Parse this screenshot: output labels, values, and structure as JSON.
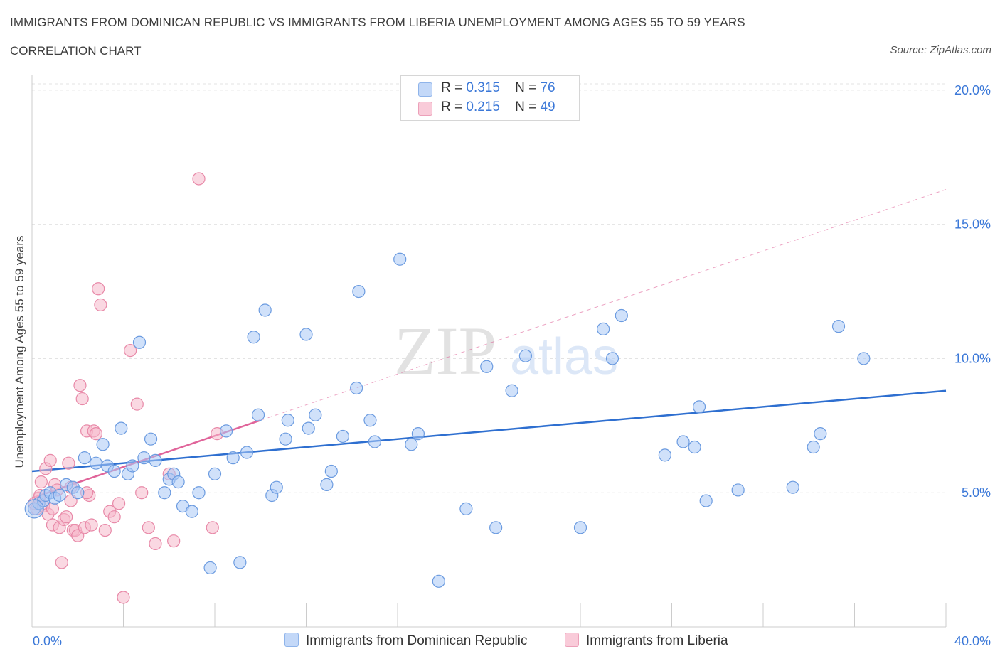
{
  "header": {
    "title": "IMMIGRANTS FROM DOMINICAN REPUBLIC VS IMMIGRANTS FROM LIBERIA UNEMPLOYMENT AMONG AGES 55 TO 59 YEARS",
    "subtitle": "CORRELATION CHART",
    "source": "Source: ZipAtlas.com"
  },
  "watermark": {
    "zip": "ZIP",
    "atlas": "atlas"
  },
  "legend": {
    "rows": [
      {
        "r_label": "R =",
        "r_value": "0.315",
        "n_label": "N =",
        "n_value": "76",
        "color": "#a9c8f5"
      },
      {
        "r_label": "R =",
        "r_value": "0.215",
        "n_label": "N =",
        "n_value": "49",
        "color": "#f6b8cb"
      }
    ]
  },
  "colors": {
    "blue_fill": "#a9c8f5",
    "blue_stroke": "#6b9be0",
    "blue_line": "#2e6fd0",
    "pink_fill": "#f6b8cb",
    "pink_stroke": "#e889a8",
    "pink_line": "#e0649a",
    "axis_text": "#3b78d8",
    "grid": "#e3e3e3"
  },
  "chart_data": {
    "type": "scatter",
    "title": "IMMIGRANTS FROM DOMINICAN REPUBLIC VS IMMIGRANTS FROM LIBERIA UNEMPLOYMENT AMONG AGES 55 TO 59 YEARS",
    "xlabel": "",
    "ylabel": "Unemployment Among Ages 55 to 59 years",
    "xlim": [
      0,
      40
    ],
    "ylim": [
      0,
      20.5
    ],
    "x_tick_labels": [
      "0.0%",
      "40.0%"
    ],
    "y_ticks": [
      5,
      10,
      15,
      20
    ],
    "y_tick_labels": [
      "5.0%",
      "10.0%",
      "15.0%",
      "20.0%"
    ],
    "grid": true,
    "legend_position": "bottom",
    "series": [
      {
        "name": "Immigrants from Dominican Republic",
        "color": "#a9c8f5",
        "trend": {
          "x": [
            0,
            40
          ],
          "y": [
            5.8,
            8.8
          ],
          "style": "solid"
        },
        "points": [
          [
            0.1,
            4.4
          ],
          [
            0.3,
            4.6
          ],
          [
            0.5,
            4.7
          ],
          [
            0.6,
            4.9
          ],
          [
            0.8,
            5.0
          ],
          [
            1.0,
            4.8
          ],
          [
            1.2,
            4.9
          ],
          [
            1.5,
            5.3
          ],
          [
            1.8,
            5.2
          ],
          [
            2.0,
            5.0
          ],
          [
            2.3,
            6.3
          ],
          [
            2.8,
            6.1
          ],
          [
            3.1,
            6.8
          ],
          [
            3.3,
            6.0
          ],
          [
            3.6,
            5.8
          ],
          [
            3.9,
            7.4
          ],
          [
            4.2,
            5.7
          ],
          [
            4.4,
            6.0
          ],
          [
            4.7,
            10.6
          ],
          [
            4.9,
            6.3
          ],
          [
            5.2,
            7.0
          ],
          [
            5.4,
            6.2
          ],
          [
            5.8,
            5.0
          ],
          [
            6.0,
            5.5
          ],
          [
            6.2,
            5.7
          ],
          [
            6.4,
            5.4
          ],
          [
            6.6,
            4.5
          ],
          [
            7.0,
            4.3
          ],
          [
            7.3,
            5.0
          ],
          [
            7.8,
            2.2
          ],
          [
            8.0,
            5.7
          ],
          [
            8.5,
            7.3
          ],
          [
            8.8,
            6.3
          ],
          [
            9.1,
            2.4
          ],
          [
            9.4,
            6.5
          ],
          [
            9.7,
            10.8
          ],
          [
            9.9,
            7.9
          ],
          [
            10.2,
            11.8
          ],
          [
            10.5,
            4.9
          ],
          [
            10.7,
            5.2
          ],
          [
            11.1,
            7.0
          ],
          [
            11.2,
            7.7
          ],
          [
            12.0,
            10.9
          ],
          [
            12.1,
            7.4
          ],
          [
            12.4,
            7.9
          ],
          [
            12.9,
            5.3
          ],
          [
            13.1,
            5.8
          ],
          [
            13.6,
            7.1
          ],
          [
            14.2,
            8.9
          ],
          [
            14.3,
            12.5
          ],
          [
            14.8,
            7.7
          ],
          [
            15.0,
            6.9
          ],
          [
            16.1,
            13.7
          ],
          [
            16.6,
            6.8
          ],
          [
            16.9,
            7.2
          ],
          [
            17.8,
            1.7
          ],
          [
            19.0,
            4.4
          ],
          [
            19.9,
            9.7
          ],
          [
            20.3,
            3.7
          ],
          [
            21.0,
            8.8
          ],
          [
            21.6,
            10.1
          ],
          [
            24.0,
            3.7
          ],
          [
            25.0,
            11.1
          ],
          [
            25.4,
            10.0
          ],
          [
            25.8,
            11.6
          ],
          [
            27.7,
            6.4
          ],
          [
            28.5,
            6.9
          ],
          [
            29.0,
            6.7
          ],
          [
            29.2,
            8.2
          ],
          [
            29.5,
            4.7
          ],
          [
            30.9,
            5.1
          ],
          [
            33.3,
            5.2
          ],
          [
            34.2,
            6.7
          ],
          [
            34.5,
            7.2
          ],
          [
            35.3,
            11.2
          ],
          [
            36.4,
            10.0
          ]
        ]
      },
      {
        "name": "Immigrants from Liberia",
        "color": "#f6b8cb",
        "trend": {
          "x": [
            0,
            10
          ],
          "y": [
            4.8,
            7.7
          ],
          "style": "solid",
          "extension": {
            "x": [
              10,
              40
            ],
            "y": [
              7.7,
              16.3
            ],
            "style": "dashed"
          }
        },
        "points": [
          [
            0.1,
            4.6
          ],
          [
            0.2,
            4.4
          ],
          [
            0.3,
            4.8
          ],
          [
            0.4,
            5.4
          ],
          [
            0.5,
            4.5
          ],
          [
            0.6,
            5.9
          ],
          [
            0.7,
            4.2
          ],
          [
            0.8,
            6.2
          ],
          [
            0.9,
            3.8
          ],
          [
            1.0,
            5.3
          ],
          [
            1.1,
            5.1
          ],
          [
            1.2,
            3.7
          ],
          [
            1.3,
            2.4
          ],
          [
            1.4,
            4.0
          ],
          [
            1.5,
            4.1
          ],
          [
            1.6,
            6.1
          ],
          [
            1.7,
            5.2
          ],
          [
            1.8,
            3.6
          ],
          [
            1.9,
            3.6
          ],
          [
            2.0,
            3.4
          ],
          [
            2.1,
            9.0
          ],
          [
            2.2,
            8.5
          ],
          [
            2.3,
            3.7
          ],
          [
            2.4,
            7.3
          ],
          [
            2.5,
            4.9
          ],
          [
            2.6,
            3.8
          ],
          [
            2.7,
            7.3
          ],
          [
            2.8,
            7.2
          ],
          [
            2.9,
            12.6
          ],
          [
            3.0,
            12.0
          ],
          [
            3.2,
            3.6
          ],
          [
            3.4,
            4.3
          ],
          [
            3.6,
            4.1
          ],
          [
            3.8,
            4.6
          ],
          [
            4.0,
            1.1
          ],
          [
            4.3,
            10.3
          ],
          [
            4.6,
            8.3
          ],
          [
            4.8,
            5.0
          ],
          [
            5.1,
            3.7
          ],
          [
            5.4,
            3.1
          ],
          [
            6.0,
            5.7
          ],
          [
            6.2,
            3.2
          ],
          [
            7.3,
            16.7
          ],
          [
            7.9,
            3.7
          ],
          [
            8.1,
            7.2
          ],
          [
            0.35,
            4.9
          ],
          [
            0.9,
            4.4
          ],
          [
            1.7,
            4.7
          ],
          [
            2.4,
            5.0
          ]
        ]
      }
    ]
  },
  "bottom_legend": {
    "items": [
      {
        "label": "Immigrants from Dominican Republic",
        "color": "#a9c8f5"
      },
      {
        "label": "Immigrants from Liberia",
        "color": "#f6b8cb"
      }
    ]
  }
}
